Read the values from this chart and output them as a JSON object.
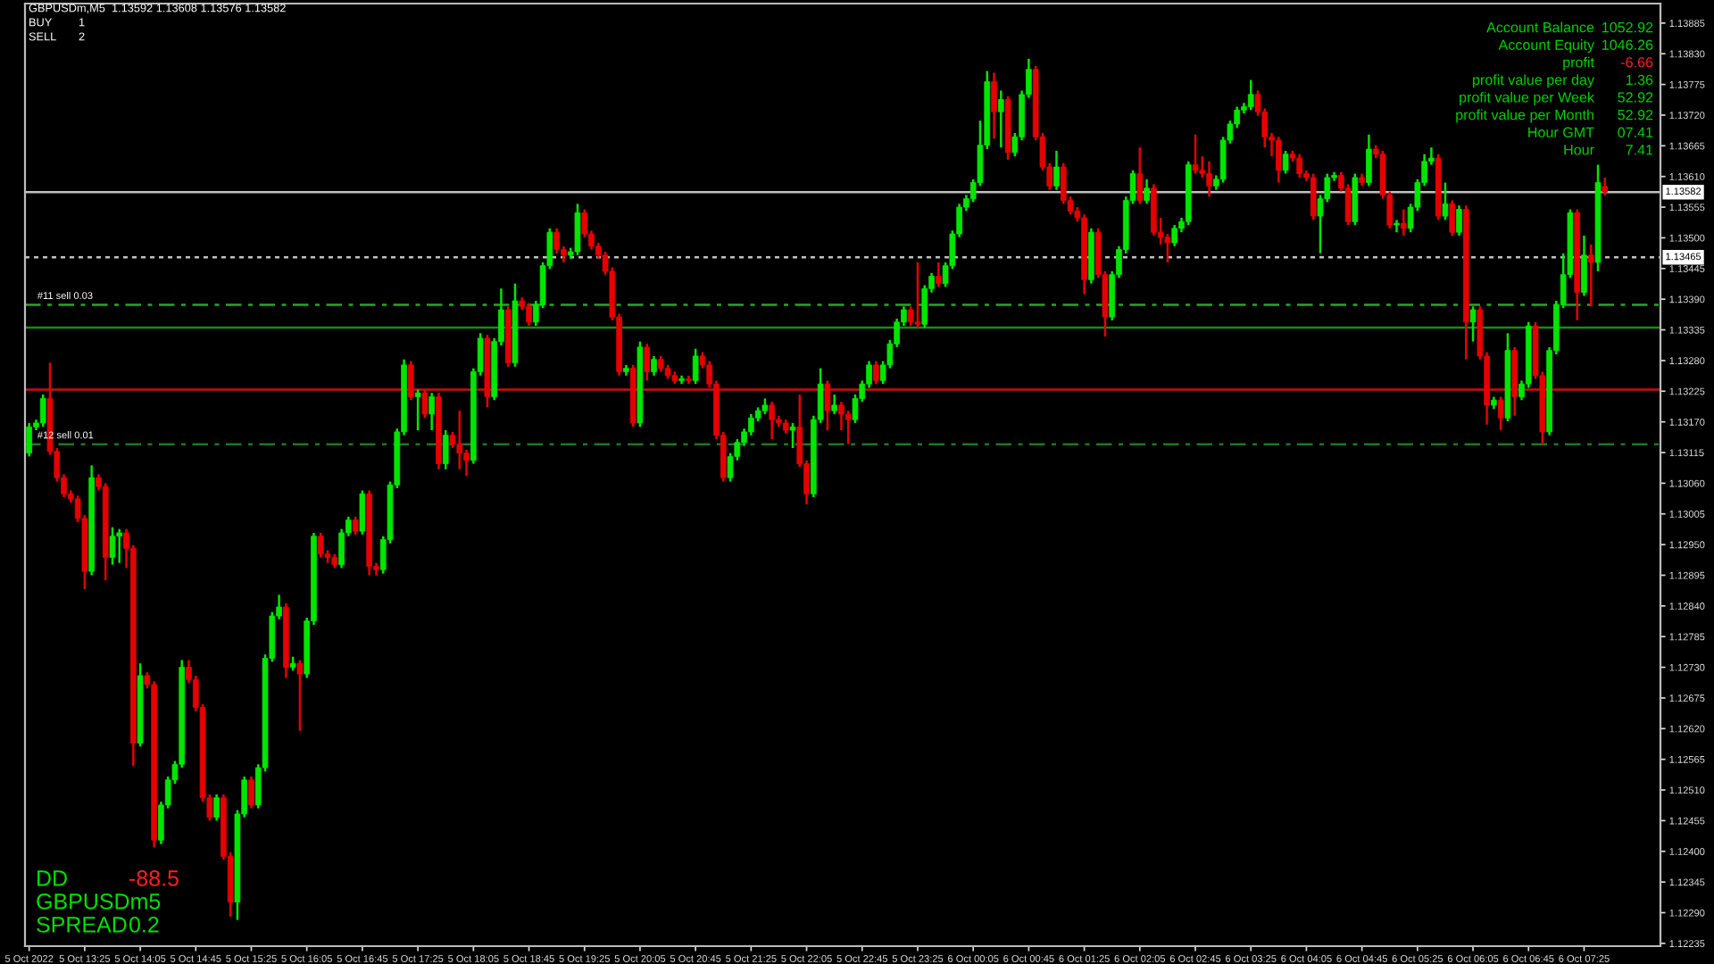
{
  "chart_data": {
    "type": "candlestick",
    "title": "GBPUSDm,M5  1.13592 1.13608 1.13576 1.13582",
    "x": [
      "2022-10-05T12:45",
      "2022-10-05T12:50",
      "2022-10-05T12:55",
      "2022-10-05T13:00",
      "2022-10-05T13:05",
      "2022-10-05T13:10",
      "2022-10-05T13:15",
      "2022-10-05T13:20",
      "2022-10-05T13:25",
      "2022-10-05T13:30",
      "2022-10-05T13:35",
      "2022-10-05T13:40",
      "2022-10-05T13:45",
      "2022-10-05T13:50",
      "2022-10-05T13:55",
      "2022-10-05T14:00",
      "2022-10-05T14:05",
      "2022-10-05T14:10",
      "2022-10-05T14:15",
      "2022-10-05T14:20",
      "2022-10-05T14:25",
      "2022-10-05T14:30",
      "2022-10-05T14:35",
      "2022-10-05T14:40",
      "2022-10-05T14:45",
      "2022-10-05T14:50",
      "2022-10-05T14:55",
      "2022-10-05T15:00",
      "2022-10-05T15:05",
      "2022-10-05T15:10",
      "2022-10-05T15:15",
      "2022-10-05T15:20",
      "2022-10-05T15:25",
      "2022-10-05T15:30",
      "2022-10-05T15:35",
      "2022-10-05T15:40",
      "2022-10-05T15:45",
      "2022-10-05T15:50",
      "2022-10-05T15:55",
      "2022-10-05T16:00",
      "2022-10-05T16:05",
      "2022-10-05T16:10",
      "2022-10-05T16:15",
      "2022-10-05T16:20",
      "2022-10-05T16:25",
      "2022-10-05T16:30",
      "2022-10-05T16:35",
      "2022-10-05T16:40",
      "2022-10-05T16:45",
      "2022-10-05T16:50",
      "2022-10-05T16:55",
      "2022-10-05T17:00",
      "2022-10-05T17:05",
      "2022-10-05T17:10",
      "2022-10-05T17:15",
      "2022-10-05T17:20",
      "2022-10-05T17:25",
      "2022-10-05T17:30",
      "2022-10-05T17:35",
      "2022-10-05T17:40",
      "2022-10-05T17:45",
      "2022-10-05T17:50",
      "2022-10-05T17:55",
      "2022-10-05T18:00",
      "2022-10-05T18:05",
      "2022-10-05T18:10",
      "2022-10-05T18:15",
      "2022-10-05T18:20",
      "2022-10-05T18:25",
      "2022-10-05T18:30",
      "2022-10-05T18:35",
      "2022-10-05T18:40",
      "2022-10-05T18:45",
      "2022-10-05T18:50",
      "2022-10-05T18:55",
      "2022-10-05T19:00",
      "2022-10-05T19:05",
      "2022-10-05T19:10",
      "2022-10-05T19:15",
      "2022-10-05T19:20",
      "2022-10-05T19:25",
      "2022-10-05T19:30",
      "2022-10-05T19:35",
      "2022-10-05T19:40",
      "2022-10-05T19:45",
      "2022-10-05T19:50",
      "2022-10-05T19:55",
      "2022-10-05T20:00",
      "2022-10-05T20:05",
      "2022-10-05T20:10",
      "2022-10-05T20:15",
      "2022-10-05T20:20",
      "2022-10-05T20:25",
      "2022-10-05T20:30",
      "2022-10-05T20:35",
      "2022-10-05T20:40",
      "2022-10-05T20:45",
      "2022-10-05T20:50",
      "2022-10-05T20:55",
      "2022-10-05T21:00",
      "2022-10-05T21:05",
      "2022-10-05T21:10",
      "2022-10-05T21:15",
      "2022-10-05T21:20",
      "2022-10-05T21:25",
      "2022-10-05T21:30",
      "2022-10-05T21:35",
      "2022-10-05T21:40",
      "2022-10-05T21:45",
      "2022-10-05T21:50",
      "2022-10-05T21:55",
      "2022-10-05T22:00",
      "2022-10-05T22:05",
      "2022-10-05T22:10",
      "2022-10-05T22:15",
      "2022-10-05T22:20",
      "2022-10-05T22:25",
      "2022-10-05T22:30",
      "2022-10-05T22:35",
      "2022-10-05T22:40",
      "2022-10-05T22:45",
      "2022-10-05T22:50",
      "2022-10-05T22:55",
      "2022-10-05T23:00",
      "2022-10-05T23:05",
      "2022-10-05T23:10",
      "2022-10-05T23:15",
      "2022-10-05T23:20",
      "2022-10-05T23:25",
      "2022-10-05T23:30",
      "2022-10-05T23:35",
      "2022-10-05T23:40",
      "2022-10-05T23:45",
      "2022-10-05T23:50",
      "2022-10-05T23:55",
      "2022-10-06T00:00",
      "2022-10-06T00:05",
      "2022-10-06T00:10",
      "2022-10-06T00:15",
      "2022-10-06T00:20",
      "2022-10-06T00:25",
      "2022-10-06T00:30",
      "2022-10-06T00:35",
      "2022-10-06T00:40",
      "2022-10-06T00:45",
      "2022-10-06T00:50",
      "2022-10-06T00:55",
      "2022-10-06T01:00",
      "2022-10-06T01:05",
      "2022-10-06T01:10",
      "2022-10-06T01:15",
      "2022-10-06T01:20",
      "2022-10-06T01:25",
      "2022-10-06T01:30",
      "2022-10-06T01:35",
      "2022-10-06T01:40",
      "2022-10-06T01:45",
      "2022-10-06T01:50",
      "2022-10-06T01:55",
      "2022-10-06T02:00",
      "2022-10-06T02:05",
      "2022-10-06T02:10",
      "2022-10-06T02:15",
      "2022-10-06T02:20",
      "2022-10-06T02:25",
      "2022-10-06T02:30",
      "2022-10-06T02:35",
      "2022-10-06T02:40",
      "2022-10-06T02:45",
      "2022-10-06T02:50",
      "2022-10-06T02:55",
      "2022-10-06T03:00",
      "2022-10-06T03:05",
      "2022-10-06T03:10",
      "2022-10-06T03:15",
      "2022-10-06T03:20",
      "2022-10-06T03:25",
      "2022-10-06T03:30",
      "2022-10-06T03:35",
      "2022-10-06T03:40",
      "2022-10-06T03:45",
      "2022-10-06T03:50",
      "2022-10-06T03:55",
      "2022-10-06T04:00",
      "2022-10-06T04:05",
      "2022-10-06T04:10",
      "2022-10-06T04:15",
      "2022-10-06T04:20",
      "2022-10-06T04:25",
      "2022-10-06T04:30",
      "2022-10-06T04:35",
      "2022-10-06T04:40",
      "2022-10-06T04:45",
      "2022-10-06T04:50",
      "2022-10-06T04:55",
      "2022-10-06T05:00",
      "2022-10-06T05:05",
      "2022-10-06T05:10",
      "2022-10-06T05:15",
      "2022-10-06T05:20",
      "2022-10-06T05:25",
      "2022-10-06T05:30",
      "2022-10-06T05:35",
      "2022-10-06T05:40",
      "2022-10-06T05:45",
      "2022-10-06T05:50",
      "2022-10-06T05:55",
      "2022-10-06T06:00",
      "2022-10-06T06:05",
      "2022-10-06T06:10",
      "2022-10-06T06:15",
      "2022-10-06T06:20",
      "2022-10-06T06:25",
      "2022-10-06T06:30",
      "2022-10-06T06:35",
      "2022-10-06T06:40",
      "2022-10-06T06:45",
      "2022-10-06T06:50",
      "2022-10-06T06:55",
      "2022-10-06T07:00",
      "2022-10-06T07:05",
      "2022-10-06T07:10",
      "2022-10-06T07:15",
      "2022-10-06T07:20",
      "2022-10-06T07:25",
      "2022-10-06T07:30",
      "2022-10-06T07:35",
      "2022-10-06T07:40"
    ],
    "ohlc": [
      [
        1.13114,
        1.13168,
        1.13108,
        1.13161
      ],
      [
        1.13161,
        1.13174,
        1.13155,
        1.13168
      ],
      [
        1.13168,
        1.13219,
        1.13161,
        1.13212
      ],
      [
        1.13212,
        1.13276,
        1.13111,
        1.13117
      ],
      [
        1.13117,
        1.13123,
        1.13063,
        1.1307
      ],
      [
        1.1307,
        1.13076,
        1.13035,
        1.13041
      ],
      [
        1.13041,
        1.13047,
        1.13025,
        1.13032
      ],
      [
        1.13032,
        1.13038,
        1.1299,
        1.12997
      ],
      [
        1.12997,
        1.13003,
        1.1287,
        1.12902
      ],
      [
        1.12902,
        1.13092,
        1.12895,
        1.1307
      ],
      [
        1.1307,
        1.13076,
        1.13047,
        1.13054
      ],
      [
        1.13054,
        1.1306,
        1.12886,
        1.12927
      ],
      [
        1.12927,
        1.12981,
        1.12914,
        1.12965
      ],
      [
        1.12965,
        1.12978,
        1.12917,
        1.12971
      ],
      [
        1.12971,
        1.12978,
        1.12908,
        1.12943
      ],
      [
        1.12943,
        1.12949,
        1.12553,
        1.12594
      ],
      [
        1.12594,
        1.12737,
        1.12588,
        1.12715
      ],
      [
        1.12715,
        1.12721,
        1.12692,
        1.12699
      ],
      [
        1.12699,
        1.12705,
        1.12407,
        1.1242
      ],
      [
        1.1242,
        1.12489,
        1.12413,
        1.12483
      ],
      [
        1.12483,
        1.12534,
        1.12477,
        1.12528
      ],
      [
        1.12528,
        1.12562,
        1.12521,
        1.12556
      ],
      [
        1.12556,
        1.12743,
        1.1255,
        1.1273
      ],
      [
        1.1273,
        1.12743,
        1.12702,
        1.12708
      ],
      [
        1.12708,
        1.12715,
        1.12651,
        1.12658
      ],
      [
        1.12658,
        1.12664,
        1.12489,
        1.12496
      ],
      [
        1.12496,
        1.12502,
        1.12455,
        1.12461
      ],
      [
        1.12461,
        1.12502,
        1.12455,
        1.12496
      ],
      [
        1.12496,
        1.12502,
        1.12385,
        1.12391
      ],
      [
        1.12391,
        1.12398,
        1.12283,
        1.12309
      ],
      [
        1.12309,
        1.12474,
        1.12277,
        1.12467
      ],
      [
        1.12467,
        1.12534,
        1.12461,
        1.12528
      ],
      [
        1.12528,
        1.12534,
        1.12477,
        1.12483
      ],
      [
        1.12483,
        1.12556,
        1.12477,
        1.1255
      ],
      [
        1.1255,
        1.12753,
        1.12543,
        1.12746
      ],
      [
        1.12746,
        1.12829,
        1.1274,
        1.12822
      ],
      [
        1.12822,
        1.1286,
        1.12816,
        1.12838
      ],
      [
        1.12838,
        1.12845,
        1.12711,
        1.1273
      ],
      [
        1.1273,
        1.12749,
        1.12724,
        1.12737
      ],
      [
        1.12737,
        1.12743,
        1.12616,
        1.12718
      ],
      [
        1.12718,
        1.12819,
        1.12711,
        1.12813
      ],
      [
        1.12813,
        1.12971,
        1.12806,
        1.12965
      ],
      [
        1.12965,
        1.12971,
        1.12927,
        1.12933
      ],
      [
        1.12933,
        1.1294,
        1.12917,
        1.12927
      ],
      [
        1.12927,
        1.12933,
        1.12908,
        1.12914
      ],
      [
        1.12914,
        1.12978,
        1.12908,
        1.12971
      ],
      [
        1.12971,
        1.13,
        1.12965,
        1.12994
      ],
      [
        1.12994,
        1.13,
        1.12968,
        1.12974
      ],
      [
        1.12974,
        1.13047,
        1.12968,
        1.13041
      ],
      [
        1.13041,
        1.13047,
        1.12895,
        1.12911
      ],
      [
        1.12911,
        1.12917,
        1.12895,
        1.12905
      ],
      [
        1.12905,
        1.12965,
        1.12898,
        1.12959
      ],
      [
        1.12959,
        1.13063,
        1.12952,
        1.13057
      ],
      [
        1.13057,
        1.13158,
        1.13051,
        1.13152
      ],
      [
        1.13152,
        1.13282,
        1.13146,
        1.13272
      ],
      [
        1.13272,
        1.13279,
        1.13209,
        1.13215
      ],
      [
        1.13215,
        1.13228,
        1.13155,
        1.13222
      ],
      [
        1.13222,
        1.13228,
        1.13177,
        1.13184
      ],
      [
        1.13184,
        1.13222,
        1.13155,
        1.13215
      ],
      [
        1.13215,
        1.13222,
        1.13085,
        1.13095
      ],
      [
        1.13095,
        1.13155,
        1.13085,
        1.13146
      ],
      [
        1.13146,
        1.13152,
        1.13123,
        1.1313
      ],
      [
        1.1313,
        1.1319,
        1.13085,
        1.13114
      ],
      [
        1.13114,
        1.1312,
        1.13073,
        1.13101
      ],
      [
        1.13101,
        1.13266,
        1.13095,
        1.1326
      ],
      [
        1.1326,
        1.13329,
        1.13253,
        1.1332
      ],
      [
        1.1332,
        1.13326,
        1.13196,
        1.13215
      ],
      [
        1.13215,
        1.1332,
        1.13209,
        1.13314
      ],
      [
        1.13314,
        1.13409,
        1.13307,
        1.13371
      ],
      [
        1.13371,
        1.13377,
        1.13269,
        1.13276
      ],
      [
        1.13276,
        1.13418,
        1.13269,
        1.13387
      ],
      [
        1.13387,
        1.13393,
        1.13371,
        1.13377
      ],
      [
        1.13377,
        1.13383,
        1.13342,
        1.13349
      ],
      [
        1.13349,
        1.13387,
        1.13342,
        1.1338
      ],
      [
        1.1338,
        1.13456,
        1.13374,
        1.1345
      ],
      [
        1.1345,
        1.13517,
        1.13444,
        1.1351
      ],
      [
        1.1351,
        1.13517,
        1.13472,
        1.13479
      ],
      [
        1.13479,
        1.13485,
        1.13456,
        1.13469
      ],
      [
        1.13469,
        1.13482,
        1.13463,
        1.13475
      ],
      [
        1.13475,
        1.13561,
        1.13469,
        1.13545
      ],
      [
        1.13545,
        1.13551,
        1.13501,
        1.13507
      ],
      [
        1.13507,
        1.13513,
        1.13479,
        1.13485
      ],
      [
        1.13485,
        1.13491,
        1.13463,
        1.13469
      ],
      [
        1.13469,
        1.13475,
        1.13434,
        1.1344
      ],
      [
        1.1344,
        1.13447,
        1.13352,
        1.13358
      ],
      [
        1.13358,
        1.13364,
        1.13253,
        1.1326
      ],
      [
        1.1326,
        1.13272,
        1.13253,
        1.13266
      ],
      [
        1.13266,
        1.13272,
        1.13161,
        1.13168
      ],
      [
        1.13168,
        1.13314,
        1.13161,
        1.13304
      ],
      [
        1.13304,
        1.1331,
        1.13244,
        1.1326
      ],
      [
        1.1326,
        1.13288,
        1.13253,
        1.13282
      ],
      [
        1.13282,
        1.13288,
        1.1326,
        1.13266
      ],
      [
        1.13266,
        1.13272,
        1.13247,
        1.13253
      ],
      [
        1.13253,
        1.1326,
        1.13238,
        1.13244
      ],
      [
        1.13244,
        1.13253,
        1.13238,
        1.13247
      ],
      [
        1.13247,
        1.13253,
        1.13238,
        1.13244
      ],
      [
        1.13244,
        1.13301,
        1.13238,
        1.13288
      ],
      [
        1.13288,
        1.13295,
        1.13266,
        1.13272
      ],
      [
        1.13272,
        1.13279,
        1.13231,
        1.13238
      ],
      [
        1.13238,
        1.13244,
        1.13139,
        1.13146
      ],
      [
        1.13146,
        1.13152,
        1.13063,
        1.1307
      ],
      [
        1.1307,
        1.13114,
        1.13063,
        1.13108
      ],
      [
        1.13108,
        1.13139,
        1.13101,
        1.13133
      ],
      [
        1.13133,
        1.13158,
        1.13127,
        1.13152
      ],
      [
        1.13152,
        1.13184,
        1.13146,
        1.13177
      ],
      [
        1.13177,
        1.13196,
        1.13171,
        1.1319
      ],
      [
        1.1319,
        1.13212,
        1.13184,
        1.132
      ],
      [
        1.132,
        1.13206,
        1.13139,
        1.13174
      ],
      [
        1.13174,
        1.13181,
        1.13161,
        1.13168
      ],
      [
        1.13168,
        1.13174,
        1.13149,
        1.13155
      ],
      [
        1.13155,
        1.13168,
        1.13123,
        1.13161
      ],
      [
        1.13161,
        1.13219,
        1.13089,
        1.13095
      ],
      [
        1.13095,
        1.13101,
        1.13022,
        1.13041
      ],
      [
        1.13041,
        1.13181,
        1.13035,
        1.13174
      ],
      [
        1.13174,
        1.13266,
        1.13168,
        1.13238
      ],
      [
        1.13238,
        1.13244,
        1.13155,
        1.1319
      ],
      [
        1.1319,
        1.13219,
        1.13184,
        1.132
      ],
      [
        1.132,
        1.13206,
        1.13155,
        1.13184
      ],
      [
        1.13184,
        1.1319,
        1.1313,
        1.13174
      ],
      [
        1.13174,
        1.13219,
        1.13168,
        1.13212
      ],
      [
        1.13212,
        1.13244,
        1.13206,
        1.13238
      ],
      [
        1.13238,
        1.13279,
        1.13231,
        1.13272
      ],
      [
        1.13272,
        1.13279,
        1.13238,
        1.13244
      ],
      [
        1.13244,
        1.13279,
        1.13238,
        1.13272
      ],
      [
        1.13272,
        1.13317,
        1.13266,
        1.1331
      ],
      [
        1.1331,
        1.13355,
        1.13304,
        1.13349
      ],
      [
        1.13349,
        1.13377,
        1.13342,
        1.13371
      ],
      [
        1.13371,
        1.13377,
        1.13342,
        1.13349
      ],
      [
        1.13349,
        1.13456,
        1.13339,
        1.13345
      ],
      [
        1.13345,
        1.13415,
        1.13339,
        1.13409
      ],
      [
        1.13409,
        1.13437,
        1.13402,
        1.13431
      ],
      [
        1.13431,
        1.13456,
        1.13412,
        1.13418
      ],
      [
        1.13418,
        1.13456,
        1.13412,
        1.1345
      ],
      [
        1.1345,
        1.13513,
        1.13444,
        1.13507
      ],
      [
        1.13507,
        1.13561,
        1.13501,
        1.13555
      ],
      [
        1.13555,
        1.13577,
        1.13548,
        1.1357
      ],
      [
        1.1357,
        1.13605,
        1.13564,
        1.13599
      ],
      [
        1.13599,
        1.1371,
        1.13593,
        1.13666
      ],
      [
        1.13666,
        1.13799,
        1.13659,
        1.1378
      ],
      [
        1.1378,
        1.13796,
        1.13678,
        1.13726
      ],
      [
        1.13726,
        1.13764,
        1.13662,
        1.13748
      ],
      [
        1.13748,
        1.13754,
        1.1364,
        1.13653
      ],
      [
        1.13653,
        1.13688,
        1.13646,
        1.13681
      ],
      [
        1.13681,
        1.13764,
        1.13675,
        1.13757
      ],
      [
        1.13757,
        1.13821,
        1.13751,
        1.13802
      ],
      [
        1.13802,
        1.13808,
        1.13675,
        1.13681
      ],
      [
        1.13681,
        1.13688,
        1.13621,
        1.13627
      ],
      [
        1.13627,
        1.13634,
        1.13586,
        1.13593
      ],
      [
        1.13593,
        1.13656,
        1.13586,
        1.13627
      ],
      [
        1.13627,
        1.13634,
        1.13561,
        1.13567
      ],
      [
        1.13567,
        1.13574,
        1.13542,
        1.13548
      ],
      [
        1.13548,
        1.13555,
        1.13529,
        1.13536
      ],
      [
        1.13536,
        1.13542,
        1.13399,
        1.13425
      ],
      [
        1.13425,
        1.13517,
        1.13418,
        1.1351
      ],
      [
        1.1351,
        1.13517,
        1.13428,
        1.13434
      ],
      [
        1.13434,
        1.1344,
        1.13323,
        1.13358
      ],
      [
        1.13358,
        1.1344,
        1.13352,
        1.13434
      ],
      [
        1.13434,
        1.13485,
        1.13428,
        1.13479
      ],
      [
        1.13479,
        1.13574,
        1.13472,
        1.13567
      ],
      [
        1.13567,
        1.13621,
        1.13561,
        1.13615
      ],
      [
        1.13615,
        1.13662,
        1.13561,
        1.13567
      ],
      [
        1.13567,
        1.13605,
        1.13561,
        1.13589
      ],
      [
        1.13589,
        1.13596,
        1.13504,
        1.1351
      ],
      [
        1.1351,
        1.13536,
        1.13488,
        1.13501
      ],
      [
        1.13501,
        1.13507,
        1.13456,
        1.13491
      ],
      [
        1.13491,
        1.13523,
        1.13485,
        1.13517
      ],
      [
        1.13517,
        1.13536,
        1.1351,
        1.13529
      ],
      [
        1.13529,
        1.13637,
        1.13523,
        1.13631
      ],
      [
        1.13631,
        1.13685,
        1.13615,
        1.13621
      ],
      [
        1.13621,
        1.13646,
        1.13608,
        1.13615
      ],
      [
        1.13615,
        1.13637,
        1.13574,
        1.13593
      ],
      [
        1.13593,
        1.13612,
        1.13586,
        1.13605
      ],
      [
        1.13605,
        1.13681,
        1.13599,
        1.13675
      ],
      [
        1.13675,
        1.1371,
        1.13669,
        1.13704
      ],
      [
        1.13704,
        1.13735,
        1.13697,
        1.13729
      ],
      [
        1.13729,
        1.13742,
        1.13723,
        1.13735
      ],
      [
        1.13735,
        1.13783,
        1.13729,
        1.13757
      ],
      [
        1.13757,
        1.13764,
        1.13719,
        1.13726
      ],
      [
        1.13726,
        1.13732,
        1.13662,
        1.13681
      ],
      [
        1.13681,
        1.13688,
        1.13646,
        1.13675
      ],
      [
        1.13675,
        1.13681,
        1.13599,
        1.13621
      ],
      [
        1.13621,
        1.13656,
        1.13615,
        1.1365
      ],
      [
        1.1365,
        1.13656,
        1.13637,
        1.13643
      ],
      [
        1.13643,
        1.1365,
        1.13608,
        1.13615
      ],
      [
        1.13615,
        1.13621,
        1.13602,
        1.13608
      ],
      [
        1.13608,
        1.13615,
        1.13532,
        1.13539
      ],
      [
        1.13539,
        1.13577,
        1.13472,
        1.1357
      ],
      [
        1.1357,
        1.13615,
        1.13564,
        1.13608
      ],
      [
        1.13608,
        1.13618,
        1.13602,
        1.13612
      ],
      [
        1.13612,
        1.13618,
        1.13583,
        1.13589
      ],
      [
        1.13589,
        1.13596,
        1.13523,
        1.13529
      ],
      [
        1.13529,
        1.13615,
        1.13523,
        1.13608
      ],
      [
        1.13608,
        1.13615,
        1.13593,
        1.13599
      ],
      [
        1.13599,
        1.13685,
        1.13593,
        1.13659
      ],
      [
        1.13659,
        1.13666,
        1.13643,
        1.1365
      ],
      [
        1.1365,
        1.13656,
        1.1357,
        1.13577
      ],
      [
        1.13577,
        1.13583,
        1.13517,
        1.13523
      ],
      [
        1.13523,
        1.13532,
        1.1351,
        1.13526
      ],
      [
        1.13526,
        1.13551,
        1.13504,
        1.13517
      ],
      [
        1.13517,
        1.13561,
        1.1351,
        1.13555
      ],
      [
        1.13555,
        1.13605,
        1.13548,
        1.13599
      ],
      [
        1.13599,
        1.1365,
        1.13593,
        1.13637
      ],
      [
        1.13637,
        1.13662,
        1.13631,
        1.13643
      ],
      [
        1.13643,
        1.1365,
        1.13532,
        1.13539
      ],
      [
        1.13539,
        1.13599,
        1.13532,
        1.13561
      ],
      [
        1.13561,
        1.13567,
        1.13504,
        1.1351
      ],
      [
        1.1351,
        1.13558,
        1.13504,
        1.13551
      ],
      [
        1.13551,
        1.13558,
        1.13282,
        1.13349
      ],
      [
        1.13349,
        1.13377,
        1.13314,
        1.13371
      ],
      [
        1.13371,
        1.13377,
        1.13282,
        1.13288
      ],
      [
        1.13288,
        1.13295,
        1.13165,
        1.132
      ],
      [
        1.132,
        1.13215,
        1.13193,
        1.13209
      ],
      [
        1.13209,
        1.13215,
        1.13155,
        1.13177
      ],
      [
        1.13177,
        1.13329,
        1.13171,
        1.13298
      ],
      [
        1.13298,
        1.13304,
        1.13181,
        1.13215
      ],
      [
        1.13215,
        1.13244,
        1.13209,
        1.13238
      ],
      [
        1.13238,
        1.13349,
        1.13231,
        1.13342
      ],
      [
        1.13342,
        1.13349,
        1.13247,
        1.13253
      ],
      [
        1.13253,
        1.1326,
        1.1313,
        1.13152
      ],
      [
        1.13152,
        1.13304,
        1.13146,
        1.13298
      ],
      [
        1.13298,
        1.13387,
        1.13291,
        1.1338
      ],
      [
        1.1338,
        1.13472,
        1.13374,
        1.13434
      ],
      [
        1.13434,
        1.13551,
        1.13428,
        1.13545
      ],
      [
        1.13545,
        1.13551,
        1.13352,
        1.13402
      ],
      [
        1.13402,
        1.13504,
        1.13396,
        1.13469
      ],
      [
        1.13469,
        1.13488,
        1.13377,
        1.13456
      ],
      [
        1.13456,
        1.13631,
        1.1344,
        1.13599
      ],
      [
        1.13592,
        1.13608,
        1.13576,
        1.13582
      ]
    ],
    "xlim": [
      "2022-10-05T12:42",
      "2022-10-06T08:20"
    ],
    "xticks": [
      {
        "value": "2022-10-05T12:45",
        "label": "5 Oct 2022"
      },
      {
        "value": "2022-10-05T13:25",
        "label": "5 Oct 13:25"
      },
      {
        "value": "2022-10-05T14:05",
        "label": "5 Oct 14:05"
      },
      {
        "value": "2022-10-05T14:45",
        "label": "5 Oct 14:45"
      },
      {
        "value": "2022-10-05T15:25",
        "label": "5 Oct 15:25"
      },
      {
        "value": "2022-10-05T16:05",
        "label": "5 Oct 16:05"
      },
      {
        "value": "2022-10-05T16:45",
        "label": "5 Oct 16:45"
      },
      {
        "value": "2022-10-05T17:25",
        "label": "5 Oct 17:25"
      },
      {
        "value": "2022-10-05T18:05",
        "label": "5 Oct 18:05"
      },
      {
        "value": "2022-10-05T18:45",
        "label": "5 Oct 18:45"
      },
      {
        "value": "2022-10-05T19:25",
        "label": "5 Oct 19:25"
      },
      {
        "value": "2022-10-05T20:05",
        "label": "5 Oct 20:05"
      },
      {
        "value": "2022-10-05T20:45",
        "label": "5 Oct 20:45"
      },
      {
        "value": "2022-10-05T21:25",
        "label": "5 Oct 21:25"
      },
      {
        "value": "2022-10-05T22:05",
        "label": "5 Oct 22:05"
      },
      {
        "value": "2022-10-05T22:45",
        "label": "5 Oct 22:45"
      },
      {
        "value": "2022-10-05T23:25",
        "label": "5 Oct 23:25"
      },
      {
        "value": "2022-10-06T00:05",
        "label": "6 Oct 00:05"
      },
      {
        "value": "2022-10-06T00:45",
        "label": "6 Oct 00:45"
      },
      {
        "value": "2022-10-06T01:25",
        "label": "6 Oct 01:25"
      },
      {
        "value": "2022-10-06T02:05",
        "label": "6 Oct 02:05"
      },
      {
        "value": "2022-10-06T02:45",
        "label": "6 Oct 02:45"
      },
      {
        "value": "2022-10-06T03:25",
        "label": "6 Oct 03:25"
      },
      {
        "value": "2022-10-06T04:05",
        "label": "6 Oct 04:05"
      },
      {
        "value": "2022-10-06T04:45",
        "label": "6 Oct 04:45"
      },
      {
        "value": "2022-10-06T05:25",
        "label": "6 Oct 05:25"
      },
      {
        "value": "2022-10-06T06:05",
        "label": "6 Oct 06:05"
      },
      {
        "value": "2022-10-06T06:45",
        "label": "6 Oct 06:45"
      },
      {
        "value": "2022-10-06T07:25",
        "label": "6 Oct 07:25"
      }
    ],
    "ylim": [
      1.1223,
      1.1392
    ],
    "yticks": [
      1.12235,
      {
        "value": 1.1229,
        "label": "1.12290"
      },
      1.12345,
      {
        "value": 1.124,
        "label": "1.12400"
      },
      1.12455,
      {
        "value": 1.1251,
        "label": "1.12510"
      },
      1.12565,
      {
        "value": 1.1262,
        "label": "1.12620"
      },
      1.12675,
      {
        "value": 1.1273,
        "label": "1.12730"
      },
      1.12785,
      {
        "value": 1.1284,
        "label": "1.12840"
      },
      1.12895,
      {
        "value": 1.1295,
        "label": "1.12950"
      },
      1.13005,
      {
        "value": 1.1306,
        "label": "1.13060"
      },
      1.13115,
      {
        "value": 1.1317,
        "label": "1.13170"
      },
      1.13225,
      {
        "value": 1.1328,
        "label": "1.13280"
      },
      1.13335,
      {
        "value": 1.1339,
        "label": "1.13390"
      },
      1.13445,
      {
        "value": 1.135,
        "label": "1.13500"
      },
      1.13555,
      {
        "value": 1.1361,
        "label": "1.13610"
      },
      1.13665,
      {
        "value": 1.1372,
        "label": "1.13720"
      },
      1.13775,
      {
        "value": 1.1383,
        "label": "1.13830"
      },
      1.13885
    ],
    "ref_lines": [
      {
        "axis": "y",
        "value": 1.13582,
        "label": "1.13582",
        "color": "#c0c0c0",
        "line_style": "solid"
      },
      {
        "axis": "y",
        "value": 1.13465,
        "label": "1.13465",
        "color": "#c0c0c0",
        "line_style": "dotted"
      },
      {
        "axis": "y",
        "value": 1.1338,
        "label": "#11 sell 0.03",
        "color": "#22aa22",
        "line_style": "dashed"
      },
      {
        "axis": "y",
        "value": 1.13339,
        "color": "#1a8a1a",
        "line_style": "solid"
      },
      {
        "axis": "y",
        "value": 1.13228,
        "color": "#cc1010",
        "line_style": "solid"
      },
      {
        "axis": "y",
        "value": 1.1313,
        "label": "#12 sell 0.01",
        "color": "#1a7a1a",
        "line_style": "dashed"
      }
    ],
    "annotations": [
      "BUY",
      "1",
      "SELL",
      "2",
      "Account Balance",
      "1052.92",
      "Account Equity",
      "1046.26",
      "profit",
      "-6.66",
      "profit value per day",
      "1.36",
      "profit value per Week",
      "52.92",
      "profit value per Month",
      "52.92",
      "Hour GMT",
      "07.41",
      "Hour",
      "7.41",
      "DD",
      "-88.5",
      "GBPUSDm5",
      "SPREAD",
      "0.2"
    ],
    "grid": false
  }
}
